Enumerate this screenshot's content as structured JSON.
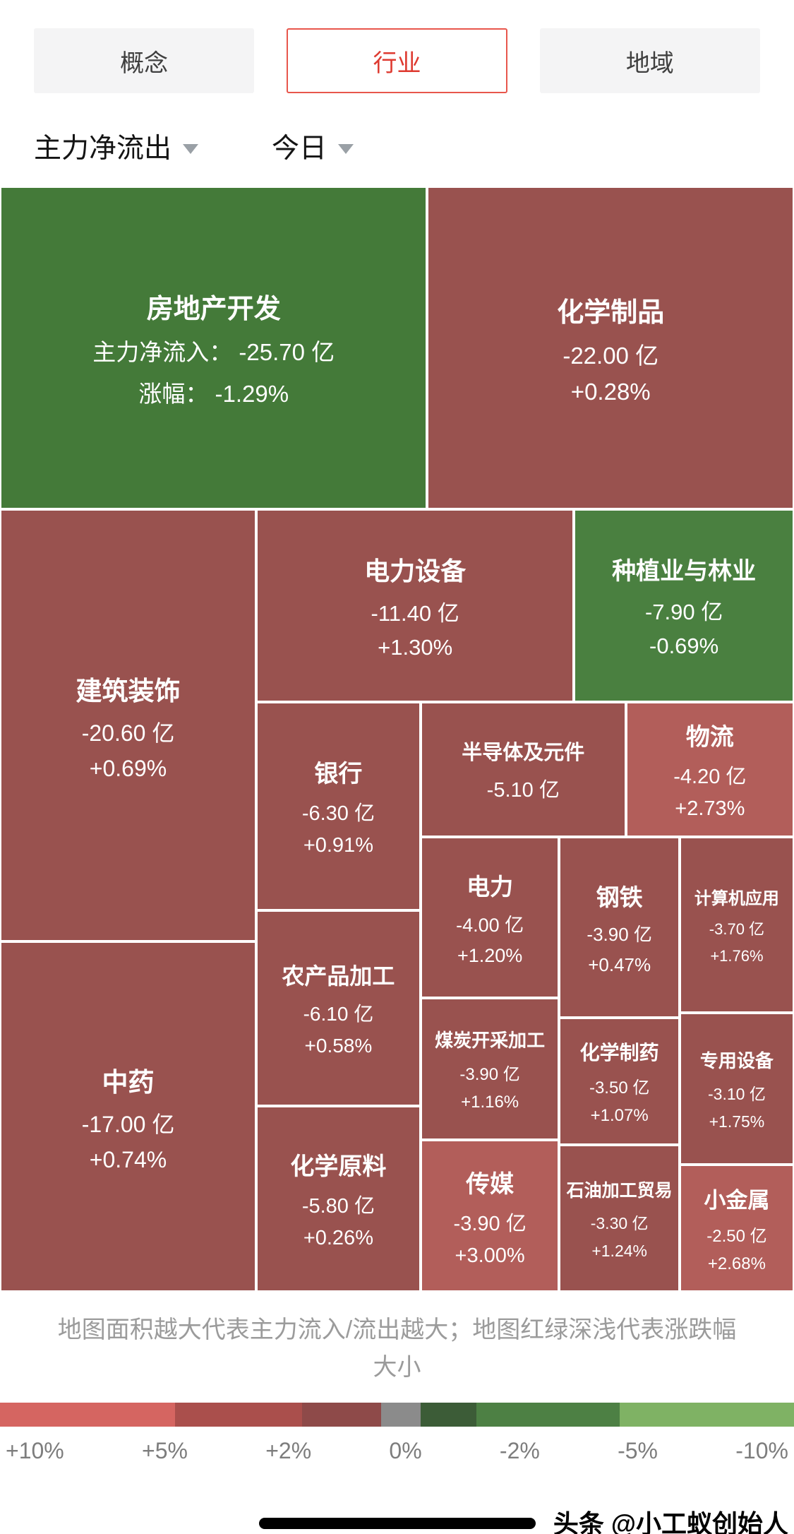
{
  "tabs": {
    "items": [
      {
        "label": "概念"
      },
      {
        "label": "行业"
      },
      {
        "label": "地域"
      }
    ],
    "active_index": 1
  },
  "filters": {
    "flow_label": "主力净流出",
    "period_label": "今日"
  },
  "chart_data": {
    "type": "treemap",
    "metric": "主力净流出",
    "period": "今日",
    "unit": "亿",
    "colors": {
      "green_deep": "#447a39",
      "green": "#4a8040",
      "red": "#99524f",
      "red_bright": "#b25e5a"
    },
    "sectors": [
      {
        "id": "real-estate-dev",
        "name": "房地产开发",
        "net_flow_yi": -25.7,
        "change_pct": -1.29,
        "flow_text": "主力净流入： -25.70 亿",
        "pct_text": "涨幅： -1.29%",
        "color": "green_deep"
      },
      {
        "id": "chemical-products",
        "name": "化学制品",
        "net_flow_yi": -22.0,
        "change_pct": 0.28,
        "flow_text": "-22.00 亿",
        "pct_text": "+0.28%",
        "color": "red"
      },
      {
        "id": "construction-decoration",
        "name": "建筑装饰",
        "net_flow_yi": -20.6,
        "change_pct": 0.69,
        "flow_text": "-20.60 亿",
        "pct_text": "+0.69%",
        "color": "red"
      },
      {
        "id": "tcm",
        "name": "中药",
        "net_flow_yi": -17.0,
        "change_pct": 0.74,
        "flow_text": "-17.00 亿",
        "pct_text": "+0.74%",
        "color": "red"
      },
      {
        "id": "power-equipment",
        "name": "电力设备",
        "net_flow_yi": -11.4,
        "change_pct": 1.3,
        "flow_text": "-11.40 亿",
        "pct_text": "+1.30%",
        "color": "red"
      },
      {
        "id": "planting-forestry",
        "name": "种植业与林业",
        "net_flow_yi": -7.9,
        "change_pct": -0.69,
        "flow_text": "-7.90 亿",
        "pct_text": "-0.69%",
        "color": "green"
      },
      {
        "id": "bank",
        "name": "银行",
        "net_flow_yi": -6.3,
        "change_pct": 0.91,
        "flow_text": "-6.30 亿",
        "pct_text": "+0.91%",
        "color": "red"
      },
      {
        "id": "agri-processing",
        "name": "农产品加工",
        "net_flow_yi": -6.1,
        "change_pct": 0.58,
        "flow_text": "-6.10 亿",
        "pct_text": "+0.58%",
        "color": "red"
      },
      {
        "id": "chemical-raw",
        "name": "化学原料",
        "net_flow_yi": -5.8,
        "change_pct": 0.26,
        "flow_text": "-5.80 亿",
        "pct_text": "+0.26%",
        "color": "red"
      },
      {
        "id": "semiconductor",
        "name": "半导体及元件",
        "net_flow_yi": -5.1,
        "change_pct": null,
        "flow_text": "-5.10 亿",
        "pct_text": "",
        "color": "red"
      },
      {
        "id": "logistics",
        "name": "物流",
        "net_flow_yi": -4.2,
        "change_pct": 2.73,
        "flow_text": "-4.20 亿",
        "pct_text": "+2.73%",
        "color": "red_bright"
      },
      {
        "id": "electric-power",
        "name": "电力",
        "net_flow_yi": -4.0,
        "change_pct": 1.2,
        "flow_text": "-4.00 亿",
        "pct_text": "+1.20%",
        "color": "red"
      },
      {
        "id": "steel",
        "name": "钢铁",
        "net_flow_yi": -3.9,
        "change_pct": 0.47,
        "flow_text": "-3.90 亿",
        "pct_text": "+0.47%",
        "color": "red"
      },
      {
        "id": "coal",
        "name": "煤炭开采加工",
        "net_flow_yi": -3.9,
        "change_pct": 1.16,
        "flow_text": "-3.90 亿",
        "pct_text": "+1.16%",
        "color": "red"
      },
      {
        "id": "media",
        "name": "传媒",
        "net_flow_yi": -3.9,
        "change_pct": 3.0,
        "flow_text": "-3.90 亿",
        "pct_text": "+3.00%",
        "color": "red_bright"
      },
      {
        "id": "computer-apps",
        "name": "计算机应用",
        "net_flow_yi": -3.7,
        "change_pct": 1.76,
        "flow_text": "-3.70 亿",
        "pct_text": "+1.76%",
        "color": "red"
      },
      {
        "id": "chem-pharma",
        "name": "化学制药",
        "net_flow_yi": -3.5,
        "change_pct": 1.07,
        "flow_text": "-3.50 亿",
        "pct_text": "+1.07%",
        "color": "red"
      },
      {
        "id": "petroleum-trade",
        "name": "石油加工贸易",
        "net_flow_yi": -3.3,
        "change_pct": 1.24,
        "flow_text": "-3.30 亿",
        "pct_text": "+1.24%",
        "color": "red"
      },
      {
        "id": "special-equipment",
        "name": "专用设备",
        "net_flow_yi": -3.1,
        "change_pct": 1.75,
        "flow_text": "-3.10 亿",
        "pct_text": "+1.75%",
        "color": "red"
      },
      {
        "id": "minor-metals",
        "name": "小金属",
        "net_flow_yi": -2.5,
        "change_pct": 2.68,
        "flow_text": "-2.50 亿",
        "pct_text": "+2.68%",
        "color": "red_bright"
      }
    ]
  },
  "legend": {
    "note": "地图面积越大代表主力流入/流出越大；地图红绿深浅代表涨跌幅大小",
    "scale_labels": [
      "+10%",
      "+5%",
      "+2%",
      "0%",
      "-2%",
      "-5%",
      "-10%"
    ],
    "scale_segments": [
      {
        "color": "#d56561",
        "pct": 22
      },
      {
        "color": "#aa4f4c",
        "pct": 16
      },
      {
        "color": "#8e4a49",
        "pct": 10
      },
      {
        "color": "#8b8b8b",
        "pct": 5
      },
      {
        "color": "#3c5c37",
        "pct": 7
      },
      {
        "color": "#4d8044",
        "pct": 18
      },
      {
        "color": "#7fb264",
        "pct": 22
      }
    ]
  },
  "footer": {
    "watermark": "头条 @小工蚁创始人"
  }
}
